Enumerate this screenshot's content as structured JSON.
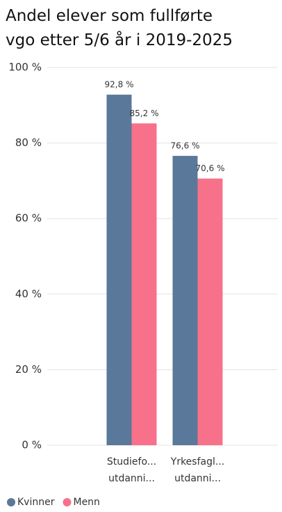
{
  "chart_data": {
    "type": "bar",
    "title": "Andel elever som fullførte vgo etter 5/6 år i 2019-2025",
    "categories": [
      "Studiefo... utdanni...",
      "Yrkesfagl... utdanni..."
    ],
    "series": [
      {
        "name": "Kvinner",
        "color": "#5a7899",
        "values": [
          92.8,
          76.6
        ],
        "value_labels": [
          "92,8 %",
          "76,6 %"
        ]
      },
      {
        "name": "Menn",
        "color": "#f7718a",
        "values": [
          85.2,
          70.6
        ],
        "value_labels": [
          "85,2 %",
          "70,6 %"
        ]
      }
    ],
    "ylim": [
      0,
      100
    ],
    "yticks": [
      {
        "value": 0,
        "label": "0 %"
      },
      {
        "value": 20,
        "label": "20 %"
      },
      {
        "value": 40,
        "label": "40 %"
      },
      {
        "value": 60,
        "label": "60 %"
      },
      {
        "value": 80,
        "label": "80 %"
      },
      {
        "value": 100,
        "label": "100 %"
      }
    ],
    "grid": true
  }
}
